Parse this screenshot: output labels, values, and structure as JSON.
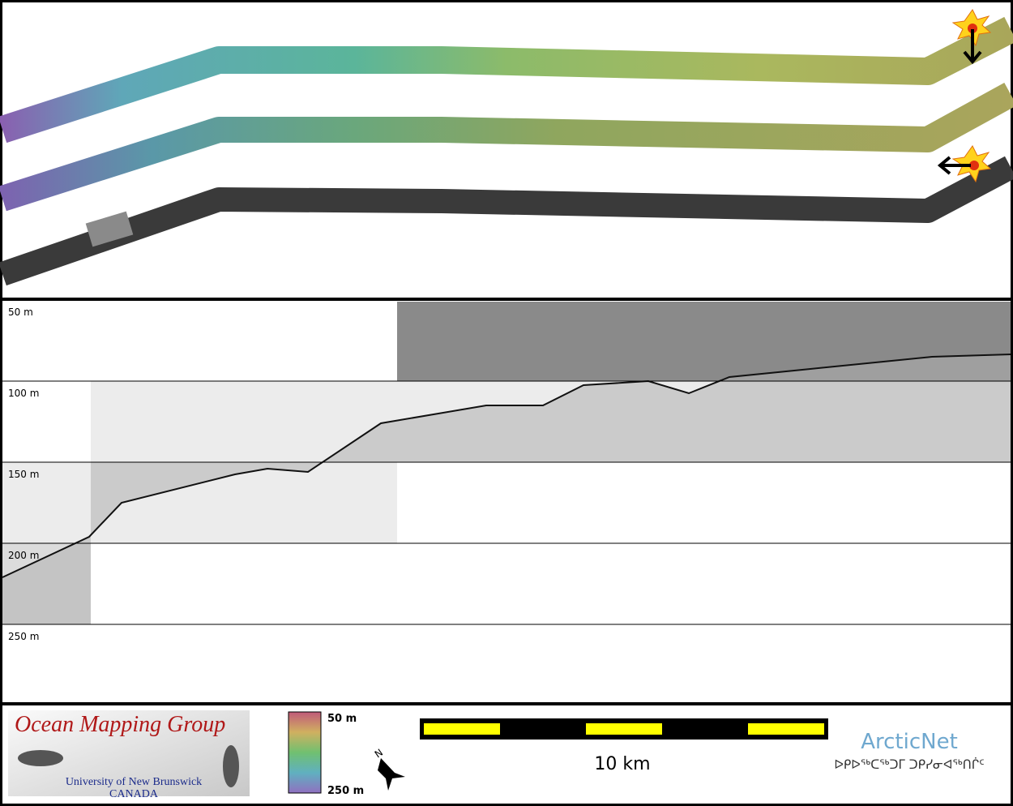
{
  "profile": {
    "depth_labels": [
      "50 m",
      "100 m",
      "150 m",
      "200 m",
      "250 m"
    ]
  },
  "legend": {
    "group": "Ocean Mapping Group",
    "university": "University of New Brunswick",
    "country": "CANADA",
    "colorbar": {
      "top": "50 m",
      "bottom": "250 m"
    },
    "north": "N",
    "scale": "10 km",
    "partner": "ArcticNet",
    "partner_syllabics": "ᐅᑭᐅᖅᑕᖅᑐᒥ ᑐᑭᓯᓂᐊᖅᑎᒌᑦ"
  }
}
